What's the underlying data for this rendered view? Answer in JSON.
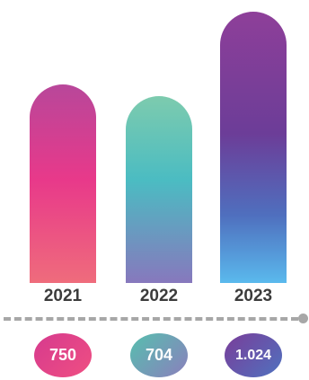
{
  "chart_data": {
    "type": "bar",
    "categories": [
      "2021",
      "2022",
      "2023"
    ],
    "values": [
      750,
      704,
      1024
    ],
    "value_labels": [
      "750",
      "704",
      "1.024"
    ],
    "ylim": [
      0,
      1024
    ]
  }
}
